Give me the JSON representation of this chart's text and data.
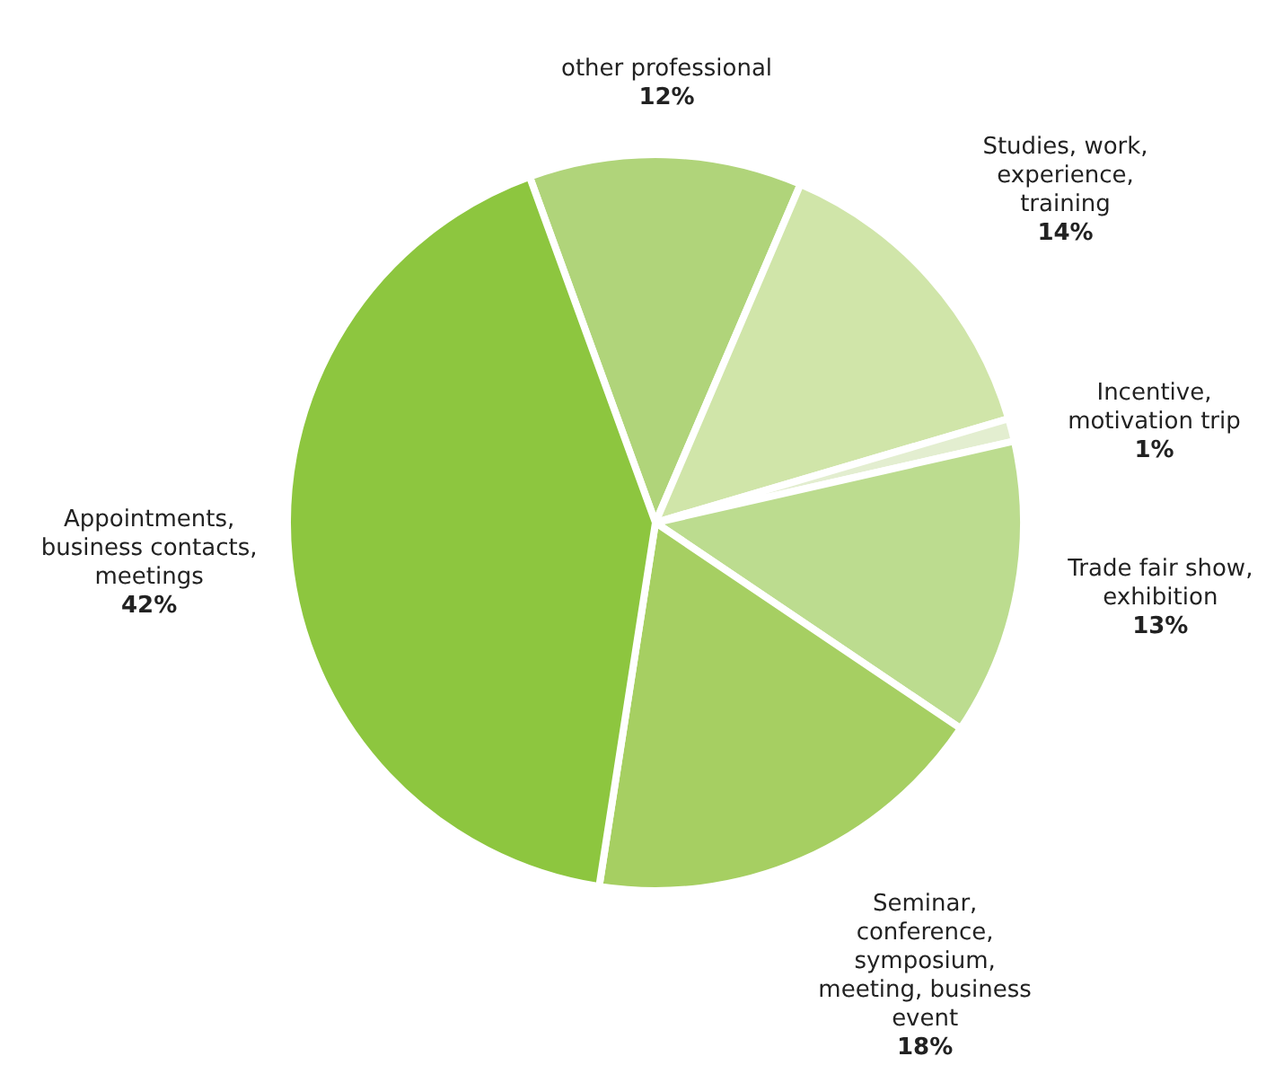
{
  "chart_data": {
    "type": "pie",
    "categories": [
      "other professional",
      "Studies, work, experience, training",
      "Incentive, motivation trip",
      "Trade fair show, exhibition",
      "Seminar, conference, symposium, meeting, business event",
      "Appointments, business contacts, meetings"
    ],
    "values": [
      12,
      14,
      1,
      13,
      18,
      42
    ],
    "value_labels": [
      "12%",
      "14%",
      "1%",
      "13%",
      "18%",
      "42%"
    ],
    "colors": [
      "#b0d47a",
      "#d0e5a9",
      "#e3eed0",
      "#bcdc8f",
      "#a6cf62",
      "#8dc63f"
    ],
    "legend": false
  }
}
